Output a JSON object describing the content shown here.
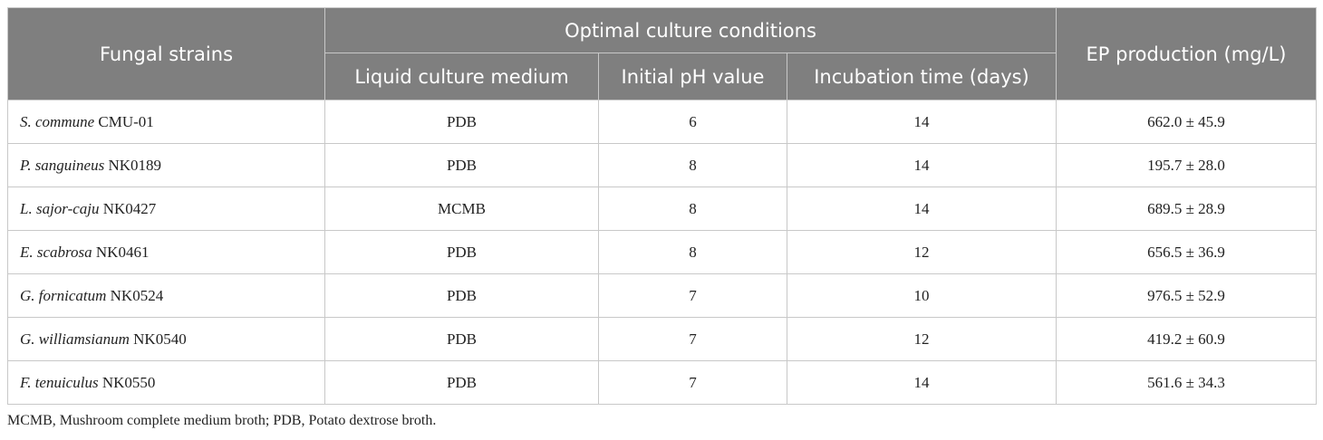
{
  "table": {
    "header": {
      "strain": "Fungal strains",
      "group": "Optimal culture conditions",
      "medium": "Liquid culture medium",
      "ph": "Initial pH value",
      "time": "Incubation time (days)",
      "production": "EP production (mg/L)"
    },
    "rows": [
      {
        "species": "S. commune",
        "code": "CMU-01",
        "medium": "PDB",
        "ph": 6,
        "time": 14,
        "production": "662.0 ± 45.9"
      },
      {
        "species": "P. sanguineus",
        "code": "NK0189",
        "medium": "PDB",
        "ph": 8,
        "time": 14,
        "production": "195.7 ± 28.0"
      },
      {
        "species": "L. sajor-caju",
        "code": "NK0427",
        "medium": "MCMB",
        "ph": 8,
        "time": 14,
        "production": "689.5 ± 28.9"
      },
      {
        "species": "E. scabrosa",
        "code": "NK0461",
        "medium": "PDB",
        "ph": 8,
        "time": 12,
        "production": "656.5 ± 36.9"
      },
      {
        "species": "G. fornicatum",
        "code": "NK0524",
        "medium": "PDB",
        "ph": 7,
        "time": 10,
        "production": "976.5 ± 52.9"
      },
      {
        "species": "G. williamsianum",
        "code": "NK0540",
        "medium": "PDB",
        "ph": 7,
        "time": 12,
        "production": "419.2 ± 60.9"
      },
      {
        "species": "F. tenuiculus",
        "code": "NK0550",
        "medium": "PDB",
        "ph": 7,
        "time": 14,
        "production": "561.6 ± 34.3"
      }
    ]
  },
  "footnote": "MCMB, Mushroom complete medium broth; PDB, Potato dextrose broth."
}
